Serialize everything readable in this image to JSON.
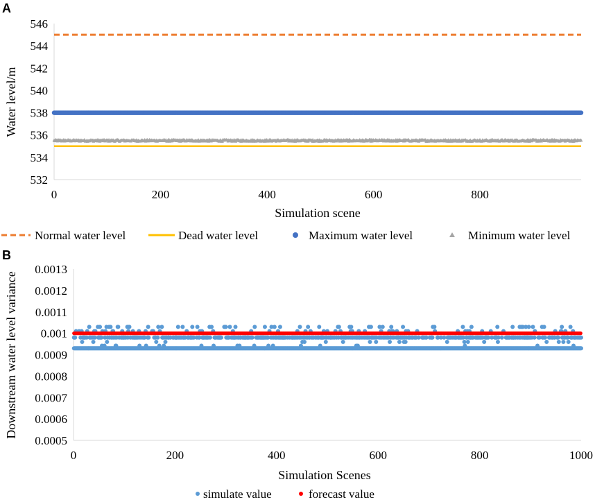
{
  "chart_data": [
    {
      "panel": "A",
      "type": "scatter",
      "xlabel": "Simulation scene",
      "ylabel": "Water level/m",
      "xlim": [
        0,
        990
      ],
      "ylim": [
        532,
        546
      ],
      "xticks": [
        0,
        200,
        400,
        600,
        800
      ],
      "yticks": [
        532,
        534,
        536,
        538,
        540,
        542,
        544,
        546
      ],
      "grid": false,
      "legend_position": "bottom",
      "n_scenes": 990,
      "series": [
        {
          "name": "Normal water level",
          "kind": "dashed-line",
          "color": "#ED7D31",
          "value": 545.0
        },
        {
          "name": "Dead water level",
          "kind": "line",
          "color": "#FFC000",
          "value": 535.0
        },
        {
          "name": "Maximum water level",
          "kind": "circle-markers",
          "color": "#4472C4",
          "value": 538.0
        },
        {
          "name": "Minimum water level",
          "kind": "triangle-markers",
          "color": "#A5A5A5",
          "value": 535.5,
          "jitter": 0.08
        }
      ]
    },
    {
      "panel": "B",
      "type": "scatter",
      "xlabel": "Simulation Scenes",
      "ylabel": "Downstream water level variance",
      "xlim": [
        0,
        1000
      ],
      "ylim": [
        0.0005,
        0.0013
      ],
      "xticks": [
        0,
        200,
        400,
        600,
        800,
        1000
      ],
      "yticks": [
        "0.0005",
        "0.0006",
        "0.0007",
        "0.0008",
        "0.0009",
        "0.001",
        "0.0011",
        "0.0012",
        "0.0013"
      ],
      "grid": false,
      "legend_position": "bottom",
      "series": [
        {
          "name": "simulate value",
          "color": "#5B9BD5",
          "baseline": 0.00093,
          "upper_band": 0.00098,
          "outlier_high": 0.00103,
          "outlier_mid": 0.00101,
          "outlier_low": 0.00096
        },
        {
          "name": "forecast value",
          "color": "#FF0000",
          "value": 0.001
        }
      ]
    }
  ]
}
